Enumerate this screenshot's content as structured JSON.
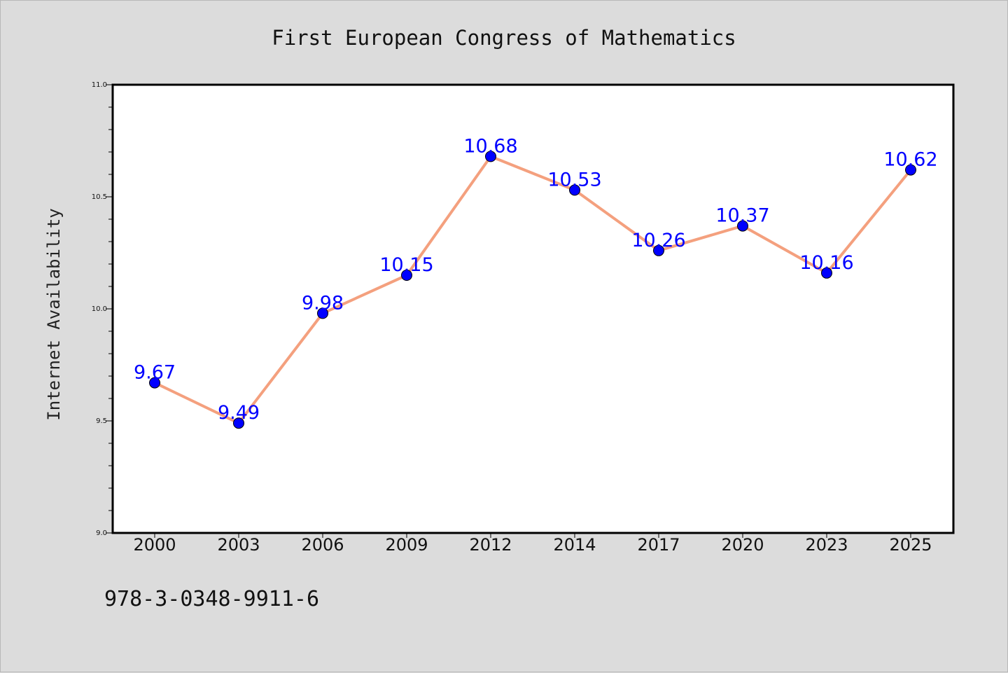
{
  "footer": {
    "code": "978-3-0348-9911-6"
  },
  "colors": {
    "background": "#dcdcdc",
    "plot_background": "#ffffff",
    "line": "#f4a07e",
    "marker": "#0000ff",
    "label": "#0000ff"
  },
  "chart_data": {
    "type": "line",
    "title": "First European Congress of Mathematics",
    "xlabel": "",
    "ylabel": "Internet Availability",
    "categories": [
      "2000",
      "2003",
      "2006",
      "2009",
      "2012",
      "2014",
      "2017",
      "2020",
      "2023",
      "2025"
    ],
    "series": [
      {
        "values": [
          9.67,
          9.49,
          9.98,
          10.15,
          10.68,
          10.53,
          10.26,
          10.37,
          10.16,
          10.62
        ]
      }
    ],
    "data_labels": [
      "9.67",
      "9.49",
      "9.98",
      "10.15",
      "10.68",
      "10.53",
      "10.26",
      "10.37",
      "10.16",
      "10.62"
    ],
    "ylim": [
      9.0,
      11.0
    ],
    "yticks": [
      "9.0",
      "9.5",
      "10.0",
      "10.5",
      "11.0"
    ],
    "grid": false,
    "legend": "none"
  }
}
